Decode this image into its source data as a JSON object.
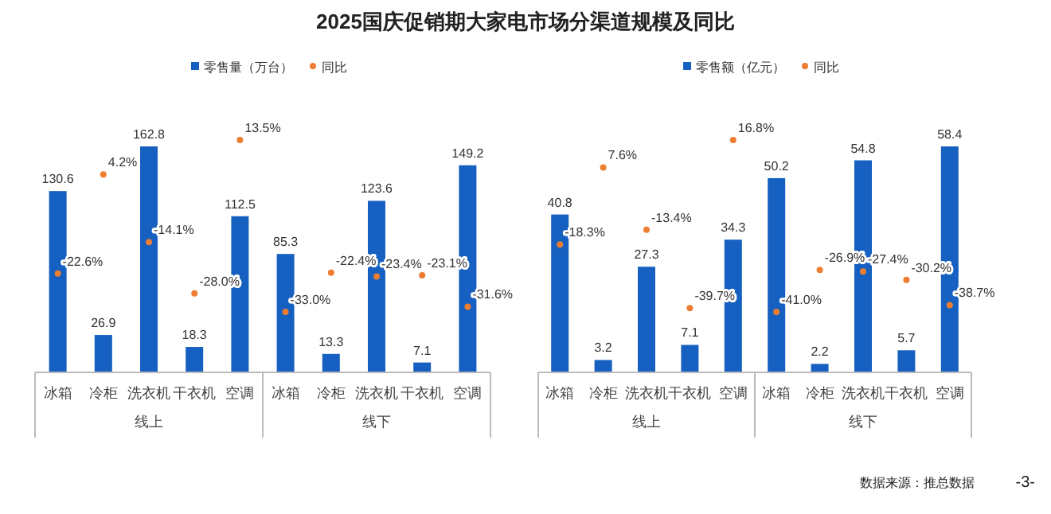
{
  "chart_data": [
    {
      "type": "bar",
      "title": "2025国庆促销期大家电市场分渠道规模及同比",
      "categories": [
        "冰箱",
        "冷柜",
        "洗衣机",
        "干衣机",
        "空调",
        "冰箱",
        "冷柜",
        "洗衣机",
        "干衣机",
        "空调"
      ],
      "data_labels": true,
      "legend": "top",
      "series": [
        {
          "name": "零售量（万台）",
          "color": "#1560c0",
          "values": [
            130.6,
            26.9,
            162.8,
            18.3,
            112.5,
            85.3,
            13.3,
            123.6,
            7.1,
            149.2
          ]
        },
        {
          "name": "同比",
          "type": "scatter",
          "axis": "y2",
          "color": "#ed7d31",
          "values": [
            -22.6,
            4.2,
            -14.1,
            -28.0,
            13.5,
            -33.0,
            -22.4,
            -23.4,
            -23.1,
            -31.6
          ],
          "value_labels": [
            "-22.6%",
            "4.2%",
            "-14.1%",
            "-28.0%",
            "13.5%",
            "-33.0%",
            "-22.4%",
            "-23.4%",
            "-23.1%",
            "-31.6%"
          ]
        }
      ],
      "annotations": [
        "线上",
        "线下"
      ]
    },
    {
      "type": "bar",
      "categories": [
        "冰箱",
        "冷柜",
        "洗衣机",
        "干衣机",
        "空调",
        "冰箱",
        "冷柜",
        "洗衣机",
        "干衣机",
        "空调"
      ],
      "data_labels": true,
      "legend": "top",
      "series": [
        {
          "name": "零售额（亿元）",
          "color": "#1560c0",
          "values": [
            40.8,
            3.2,
            27.3,
            7.1,
            34.3,
            50.2,
            2.2,
            54.8,
            5.7,
            58.4
          ]
        },
        {
          "name": "同比",
          "type": "scatter",
          "axis": "y2",
          "color": "#ed7d31",
          "values": [
            -18.3,
            7.6,
            -13.4,
            -39.7,
            16.8,
            -41.0,
            -26.9,
            -27.4,
            -30.2,
            -38.7
          ],
          "value_labels": [
            "-18.3%",
            "7.6%",
            "-13.4%",
            "-39.7%",
            "16.8%",
            "-41.0%",
            "-26.9%",
            "-27.4%",
            "-30.2%",
            "-38.7%"
          ]
        }
      ],
      "annotations": [
        "线上",
        "线下",
        "数据来源：推总数据",
        "-3-"
      ]
    }
  ]
}
